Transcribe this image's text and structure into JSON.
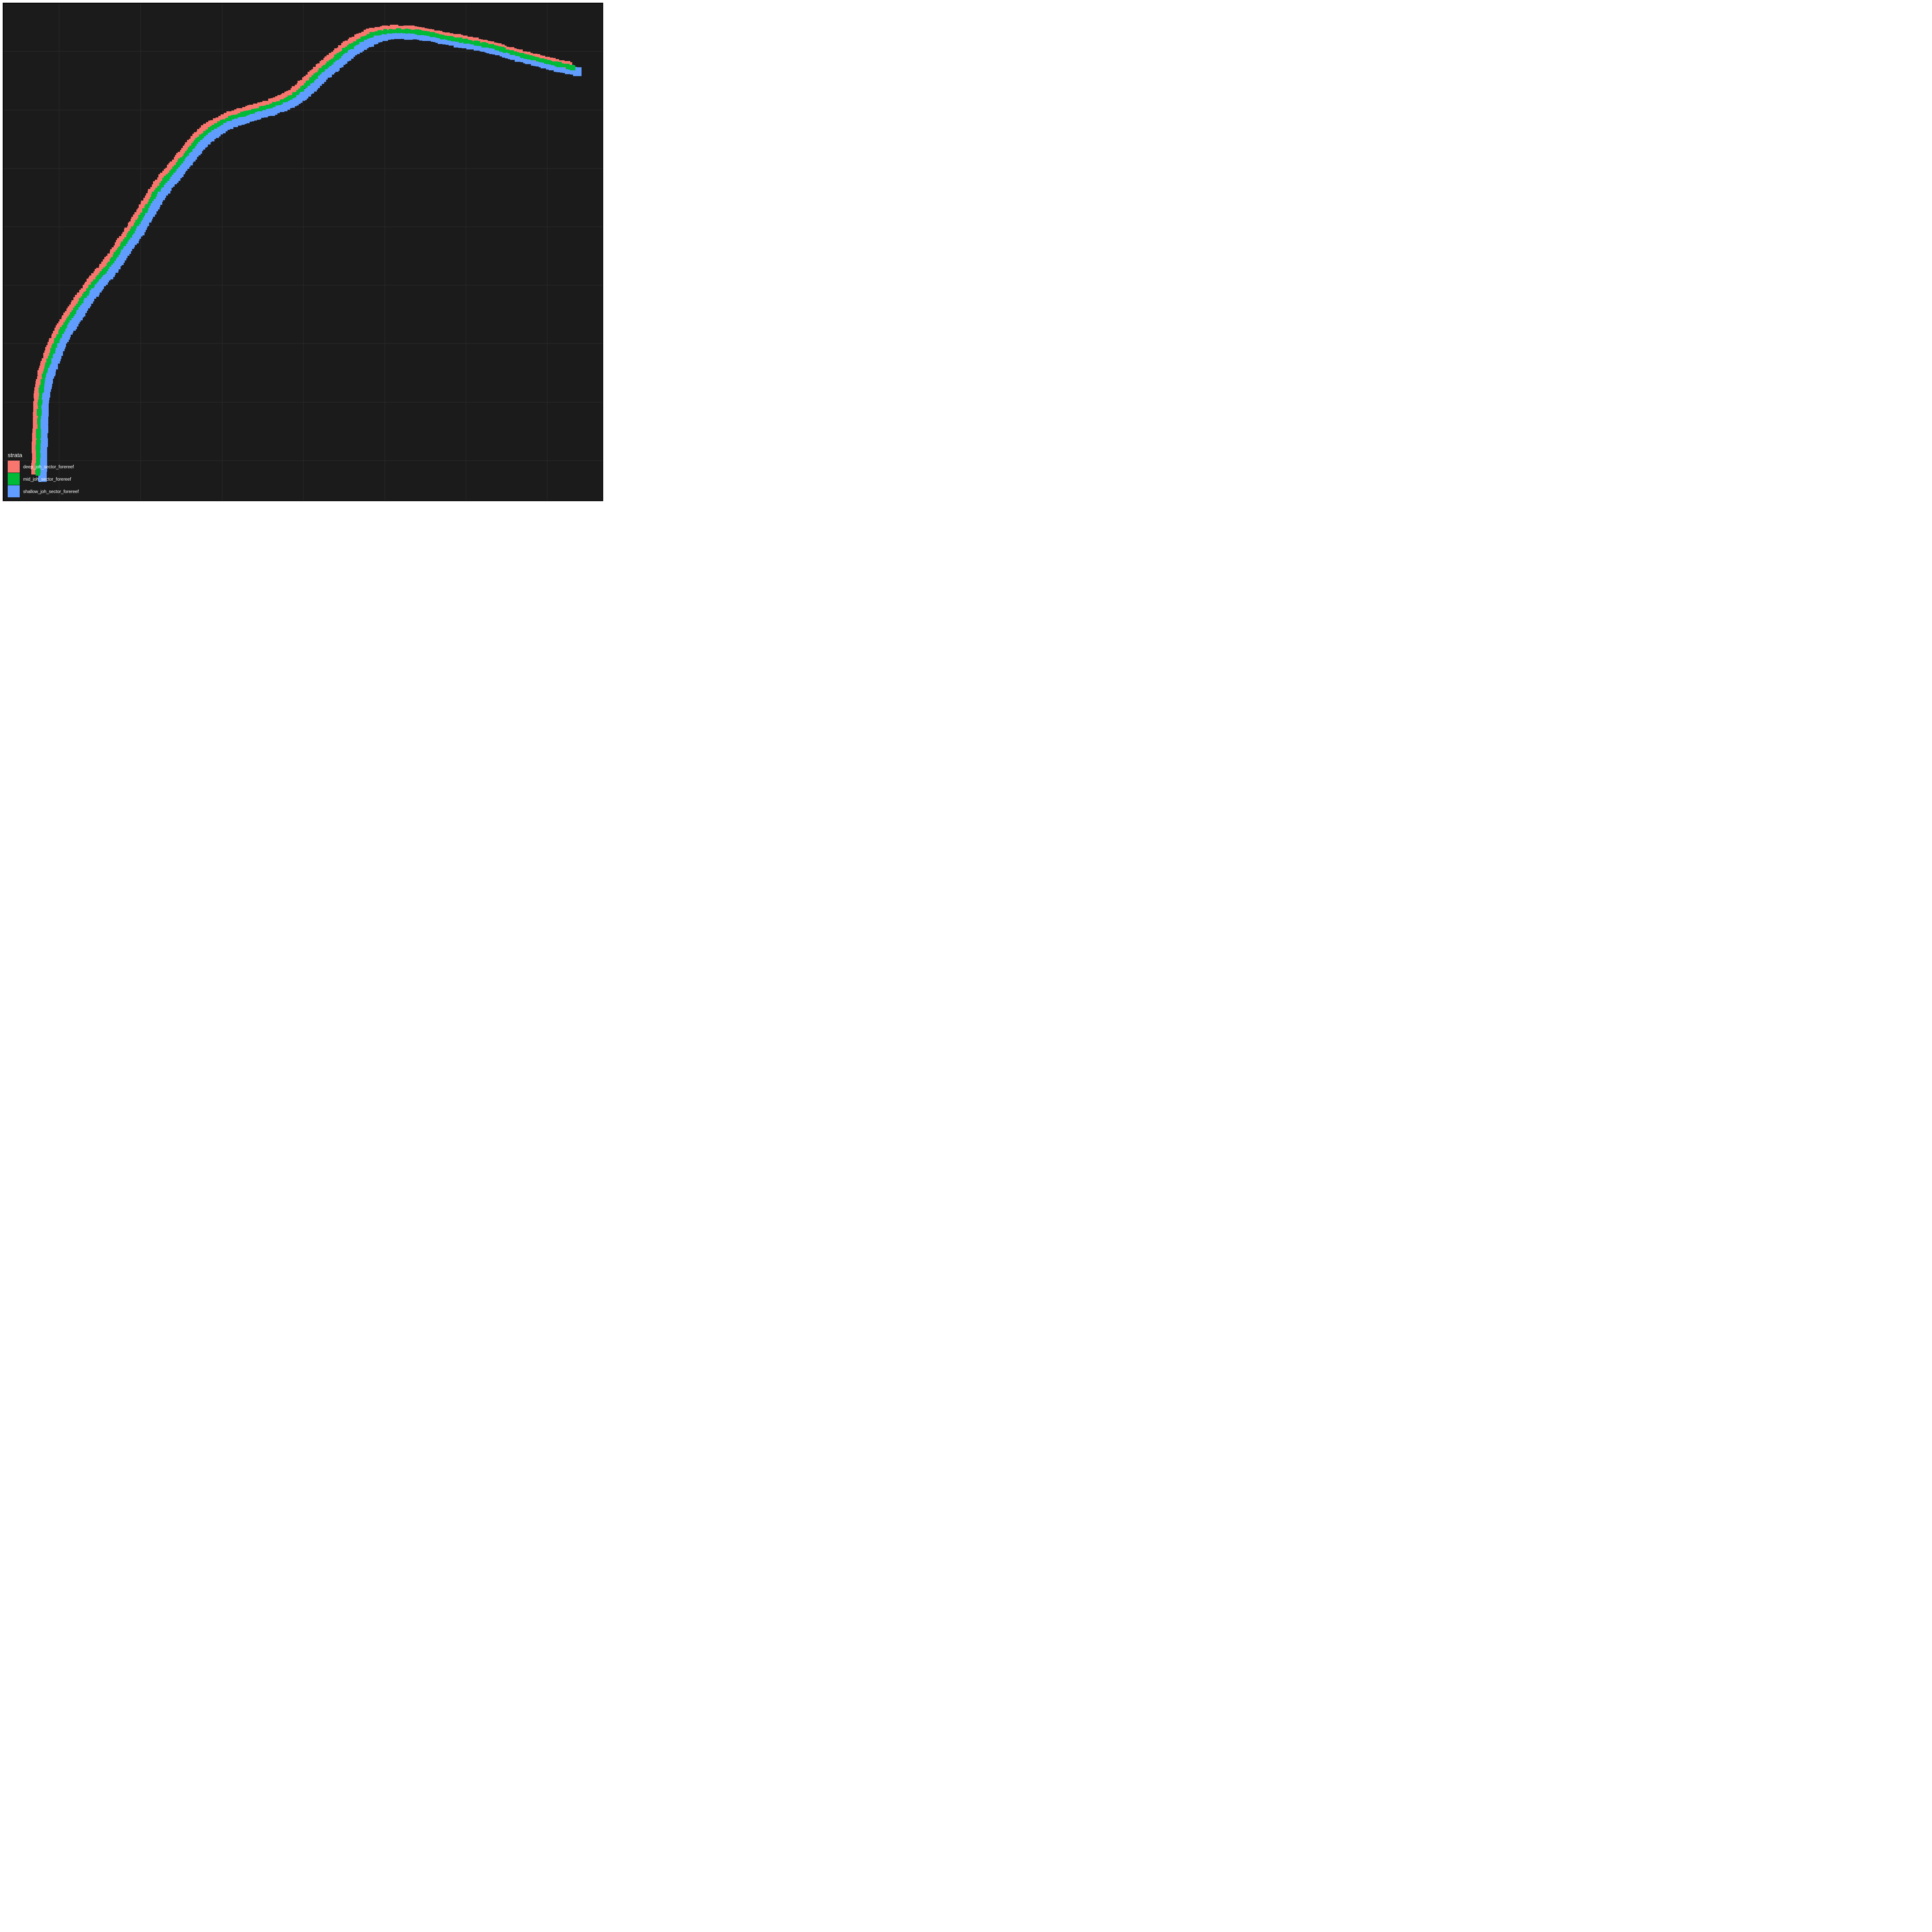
{
  "legend": {
    "title": "strata",
    "items": [
      {
        "label": "deep_joh_sector_forereef",
        "color": "#F8766D"
      },
      {
        "label": "mid_joh_sector_forereef",
        "color": "#00BA38"
      },
      {
        "label": "shallow_joh_sector_forereef",
        "color": "#619CFF"
      }
    ]
  },
  "colors": {
    "panel_background": "#1b1b1b",
    "grid": "#2c2c2c",
    "frame": "#000000"
  },
  "grid": "on",
  "legend_position": "bottom-left"
}
